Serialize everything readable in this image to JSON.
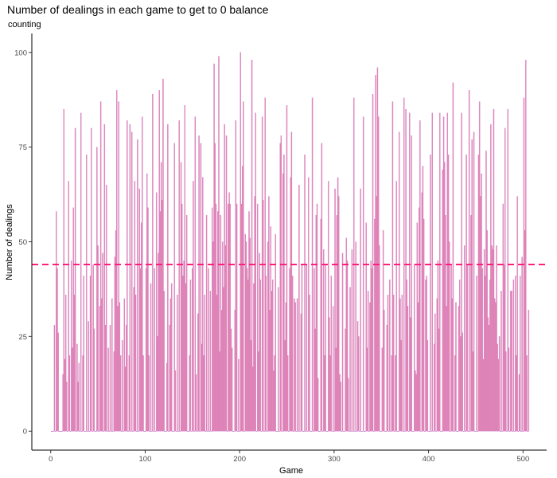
{
  "chart_data": {
    "type": "bar",
    "title": "Number of dealings in each game to get to 0 balance",
    "subtitle": "counting",
    "xlabel": "Game",
    "ylabel": "Number of dealings",
    "xlim": [
      -20,
      525
    ],
    "ylim": [
      -5,
      105
    ],
    "x_ticks": [
      0,
      100,
      200,
      300,
      400,
      500
    ],
    "y_ticks": [
      0,
      25,
      50,
      75,
      100
    ],
    "grid": false,
    "legend": "none",
    "reference_line": {
      "y": 44,
      "style": "dashed",
      "color": "#ff1f7a"
    },
    "colors": {
      "bar_fill": "#ee82a4",
      "bar_outline": "#c17ed6"
    },
    "series": [
      {
        "values": [
          0,
          0,
          0,
          28,
          0,
          58,
          43,
          26,
          0,
          0,
          0,
          0,
          15,
          85,
          19,
          36,
          13,
          0,
          66,
          20,
          0,
          45,
          22,
          59,
          36,
          80,
          0,
          23,
          13,
          18,
          0,
          84,
          0,
          20,
          41,
          0,
          0,
          73,
          0,
          29,
          0,
          41,
          80,
          0,
          44,
          27,
          0,
          0,
          75,
          49,
          0,
          33,
          87,
          35,
          47,
          0,
          81,
          28,
          65,
          0,
          22,
          0,
          28,
          0,
          35,
          0,
          21,
          46,
          53,
          90,
          33,
          87,
          34,
          20,
          0,
          24,
          0,
          35,
          17,
          28,
          82,
          0,
          20,
          81,
          0,
          79,
          0,
          38,
          66,
          36,
          0,
          77,
          0,
          64,
          43,
          55,
          83,
          20,
          0,
          0,
          43,
          68,
          59,
          20,
          0,
          39,
          0,
          89,
          0,
          43,
          0,
          63,
          25,
          47,
          90,
          58,
          71,
          61,
          93,
          37,
          0,
          0,
          18,
          81,
          0,
          28,
          35,
          39,
          0,
          0,
          76,
          16,
          0,
          36,
          0,
          82,
          0,
          71,
          60,
          41,
          45,
          86,
          39,
          57,
          0,
          0,
          20,
          40,
          0,
          43,
          66,
          0,
          83,
          15,
          0,
          31,
          78,
          0,
          76,
          23,
          67,
          20,
          36,
          0,
          57,
          0,
          43,
          0,
          37,
          0,
          59,
          50,
          97,
          76,
          60,
          36,
          58,
          99,
          21,
          57,
          32,
          50,
          38,
          81,
          49,
          78,
          0,
          60,
          63,
          60,
          27,
          22,
          0,
          0,
          32,
          82,
          60,
          0,
          19,
          0,
          100,
          60,
          70,
          87,
          0,
          52,
          50,
          43,
          40,
          58,
          51,
          24,
          98,
          17,
          39,
          62,
          84,
          0,
          60,
          21,
          47,
          40,
          0,
          83,
          61,
          0,
          88,
          41,
          0,
          50,
          62,
          32,
          54,
          37,
          40,
          16,
          20,
          52,
          0,
          0,
          38,
          0,
          76,
          78,
          0,
          68,
          73,
          24,
          34,
          86,
          20,
          0,
          43,
          67,
          79,
          41,
          0,
          35,
          34,
          0,
          35,
          0,
          65,
          0,
          31,
          44,
          0,
          0,
          73,
          0,
          44,
          0,
          67,
          36,
          0,
          0,
          88,
          0,
          43,
          27,
          57,
          60,
          14,
          0,
          0,
          56,
          76,
          0,
          48,
          20,
          44,
          0,
          0,
          66,
          30,
          20,
          41,
          0,
          33,
          0,
          64,
          22,
          57,
          67,
          62,
          15,
          13,
          0,
          47,
          0,
          0,
          27,
          51,
          45,
          14,
          0,
          38,
          0,
          48,
          0,
          88,
          0,
          50,
          0,
          29,
          25,
          0,
          64,
          0,
          0,
          83,
          0,
          0,
          55,
          22,
          37,
          0,
          34,
          45,
          43,
          89,
          0,
          56,
          94,
          62,
          96,
          83,
          49,
          0,
          0,
          22,
          53,
          32,
          0,
          0,
          28,
          36,
          0,
          40,
          0,
          20,
          87,
          36,
          0,
          20,
          66,
          0,
          0,
          79,
          35,
          24,
          36,
          0,
          88,
          0,
          85,
          40,
          33,
          0,
          84,
          30,
          78,
          0,
          0,
          44,
          16,
          15,
          55,
          34,
          59,
          82,
          0,
          63,
          70,
          56,
          0,
          40,
          41,
          24,
          0,
          0,
          73,
          0,
          84,
          0,
          23,
          31,
          0,
          35,
          45,
          27,
          84,
          0,
          0,
          69,
          83,
          71,
          57,
          33,
          84,
          73,
          50,
          0,
          44,
          35,
          92,
          0,
          20,
          34,
          0,
          0,
          33,
          40,
          25,
          84,
          26,
          0,
          49,
          0,
          73,
          44,
          0,
          90,
          0,
          57,
          77,
          21,
          79,
          0,
          0,
          41,
          0,
          73,
          87,
          62,
          68,
          43,
          19,
          48,
          41,
          74,
          53,
          30,
          28,
          40,
          81,
          49,
          48,
          85,
          35,
          34,
          49,
          23,
          19,
          25,
          0,
          37,
          0,
          60,
          44,
          80,
          21,
          0,
          85,
          22,
          0,
          37,
          37,
          0,
          40,
          0,
          41,
          20,
          62,
          0,
          15,
          41,
          0,
          46,
          0,
          88,
          53,
          98,
          20,
          0,
          32
        ]
      }
    ]
  }
}
